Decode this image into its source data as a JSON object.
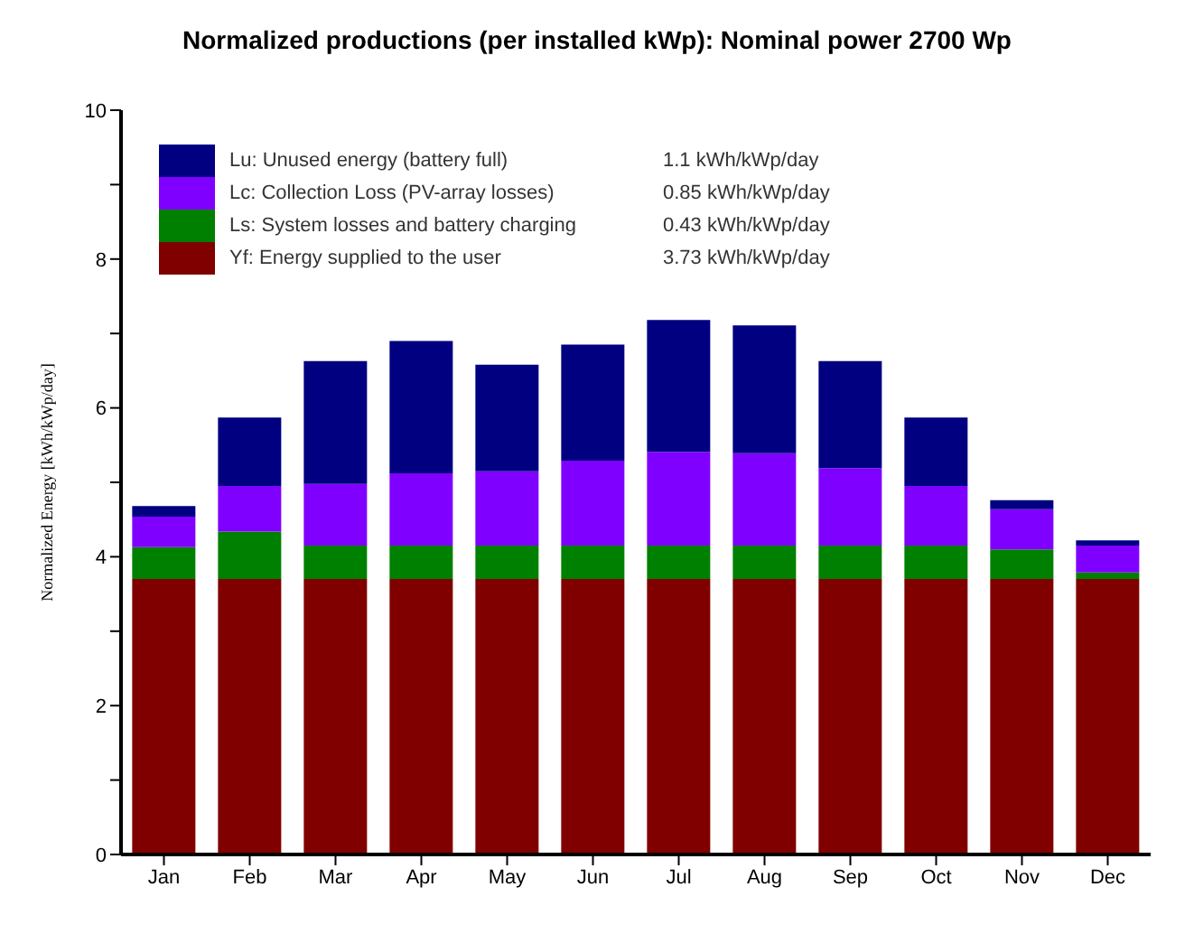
{
  "chart_data": {
    "type": "bar",
    "title": "Normalized productions (per installed kWp):  Nominal power 2700 Wp",
    "ylabel": "Normalized Energy  [kWh/kWp/day]",
    "categories": [
      "Jan",
      "Feb",
      "Mar",
      "Apr",
      "May",
      "Jun",
      "Jul",
      "Aug",
      "Sep",
      "Oct",
      "Nov",
      "Dec"
    ],
    "stacked": true,
    "series": [
      {
        "name": "Yf: Energy supplied to the user",
        "color": "#800000",
        "values": [
          3.7,
          3.7,
          3.7,
          3.7,
          3.7,
          3.7,
          3.7,
          3.7,
          3.7,
          3.7,
          3.7,
          3.7
        ]
      },
      {
        "name": "Ls: System losses and battery charging",
        "color": "#008000",
        "values": [
          0.43,
          0.64,
          0.45,
          0.45,
          0.45,
          0.45,
          0.45,
          0.45,
          0.45,
          0.45,
          0.4,
          0.09
        ]
      },
      {
        "name": "Lc: Collection Loss (PV-array losses)",
        "color": "#8000ff",
        "values": [
          0.41,
          0.61,
          0.83,
          0.97,
          1.0,
          1.14,
          1.26,
          1.24,
          1.04,
          0.8,
          0.54,
          0.36
        ]
      },
      {
        "name": "Lu: Unused energy (battery full)",
        "color": "#000080",
        "values": [
          0.14,
          0.92,
          1.65,
          1.78,
          1.43,
          1.56,
          1.77,
          1.72,
          1.44,
          0.92,
          0.12,
          0.07
        ]
      }
    ],
    "annotations": [
      "3.73 kWh/kWp/day",
      "0.43 kWh/kWp/day",
      "0.85 kWh/kWp/day",
      "1.1 kWh/kWp/day"
    ],
    "ylim": [
      0,
      10
    ],
    "yticks": [
      0,
      {
        "value": 1,
        "label": null
      },
      2,
      {
        "value": 3,
        "label": null
      },
      4,
      {
        "value": 5,
        "label": null
      },
      6,
      {
        "value": 7,
        "label": null
      },
      8,
      {
        "value": 9,
        "label": null
      },
      10
    ],
    "grid": false,
    "legend": "top left"
  }
}
